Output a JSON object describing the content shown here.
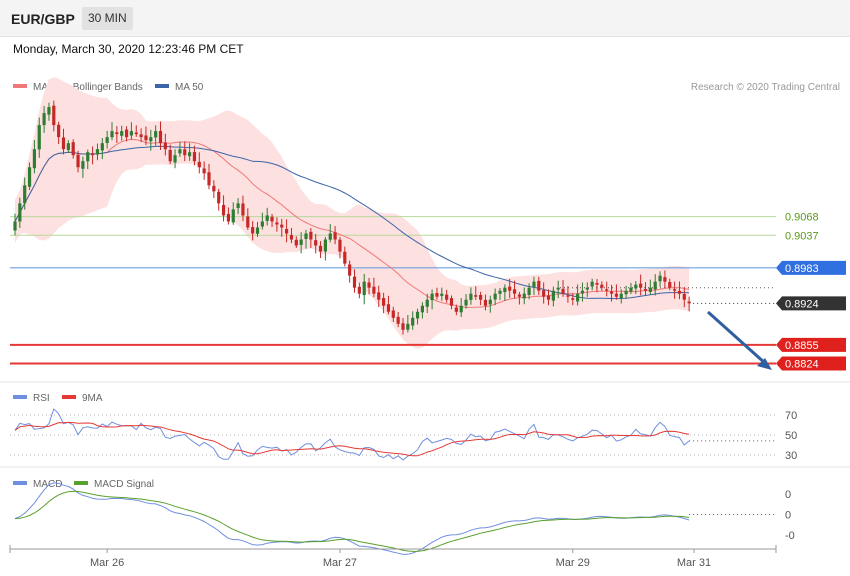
{
  "header": {
    "pair": "EUR/GBP",
    "timeframe": "30 MIN",
    "datetime": "Monday, March 30, 2020 12:23:46 PM CET"
  },
  "main_legend": {
    "ma20": "MA 20 + Bollinger Bands",
    "ma50": "MA 50",
    "credit": "Research © 2020 Trading Central"
  },
  "rsi_legend": {
    "rsi": "RSI",
    "ma": "9MA"
  },
  "macd_legend": {
    "macd": "MACD",
    "signal": "MACD Signal"
  },
  "colors": {
    "ma20": "#f07878",
    "ma50": "#3c64a8",
    "band": "#fde0e0",
    "up": "#2e7d32",
    "down": "#c62828",
    "green_level": "#b8d89a",
    "blue_level": "#6ea0e0",
    "red_level": "#e53935",
    "rsi": "#6f8fe0",
    "macd_signal": "#5aa02c"
  },
  "chart_data": [
    {
      "type": "candlestick",
      "title": "EUR/GBP 30 MIN",
      "x_tick_labels": [
        {
          "label": "Mar 26",
          "index": 19
        },
        {
          "label": "Mar 27",
          "index": 67
        },
        {
          "label": "Mar 29",
          "index": 115
        },
        {
          "label": "Mar 31",
          "index": 140
        }
      ],
      "ylim": [
        0.8805,
        0.927
      ],
      "levels": [
        {
          "label": "0.9068",
          "value": 0.9068,
          "kind": "resistance"
        },
        {
          "label": "0.9037",
          "value": 0.9037,
          "kind": "resistance"
        },
        {
          "label": "0.8983",
          "value": 0.8983,
          "kind": "pivot"
        },
        {
          "label": "0.8924",
          "value": 0.8924,
          "kind": "current"
        },
        {
          "label": "0.8855",
          "value": 0.8855,
          "kind": "support"
        },
        {
          "label": "0.8824",
          "value": 0.8824,
          "kind": "support"
        }
      ],
      "closes": [
        0.906,
        0.909,
        0.912,
        0.915,
        0.918,
        0.922,
        0.924,
        0.925,
        0.922,
        0.92,
        0.918,
        0.919,
        0.917,
        0.915,
        0.916,
        0.9175,
        0.917,
        0.918,
        0.919,
        0.92,
        0.921,
        0.9205,
        0.921,
        0.92,
        0.921,
        0.9205,
        0.92,
        0.9195,
        0.92,
        0.921,
        0.919,
        0.918,
        0.916,
        0.917,
        0.918,
        0.917,
        0.9175,
        0.916,
        0.915,
        0.914,
        0.912,
        0.911,
        0.909,
        0.907,
        0.906,
        0.908,
        0.909,
        0.907,
        0.905,
        0.904,
        0.905,
        0.906,
        0.907,
        0.906,
        0.9055,
        0.905,
        0.904,
        0.903,
        0.902,
        0.903,
        0.904,
        0.903,
        0.902,
        0.901,
        0.903,
        0.904,
        0.903,
        0.901,
        0.899,
        0.897,
        0.895,
        0.894,
        0.896,
        0.895,
        0.894,
        0.893,
        0.892,
        0.891,
        0.89,
        0.889,
        0.888,
        0.889,
        0.89,
        0.891,
        0.892,
        0.893,
        0.894,
        0.8935,
        0.894,
        0.893,
        0.892,
        0.891,
        0.892,
        0.893,
        0.894,
        0.8935,
        0.893,
        0.892,
        0.893,
        0.894,
        0.8945,
        0.895,
        0.8945,
        0.894,
        0.8935,
        0.894,
        0.895,
        0.896,
        0.8945,
        0.8935,
        0.893,
        0.8945,
        0.895,
        0.894,
        0.8935,
        0.893,
        0.894,
        0.8945,
        0.895,
        0.896,
        0.8955,
        0.895,
        0.8945,
        0.894,
        0.8935,
        0.894,
        0.8945,
        0.895,
        0.8955,
        0.895,
        0.8945,
        0.895,
        0.896,
        0.897,
        0.896,
        0.895,
        0.8945,
        0.894,
        0.893,
        0.8924
      ]
    },
    {
      "type": "line",
      "title": "RSI",
      "series": [
        {
          "name": "RSI"
        },
        {
          "name": "9MA"
        }
      ],
      "y_tick_labels": [
        {
          "label": "70",
          "value": 70
        },
        {
          "label": "50",
          "value": 50
        },
        {
          "label": "30",
          "value": 30
        }
      ],
      "ylim": [
        20,
        80
      ]
    },
    {
      "type": "line",
      "title": "MACD",
      "series": [
        {
          "name": "MACD"
        },
        {
          "name": "MACD Signal"
        }
      ],
      "y_tick_labels": [
        {
          "label": "0",
          "value": 0.003
        },
        {
          "label": "0",
          "value": 0.0005
        },
        {
          "label": "-0",
          "value": -0.002
        }
      ]
    }
  ]
}
